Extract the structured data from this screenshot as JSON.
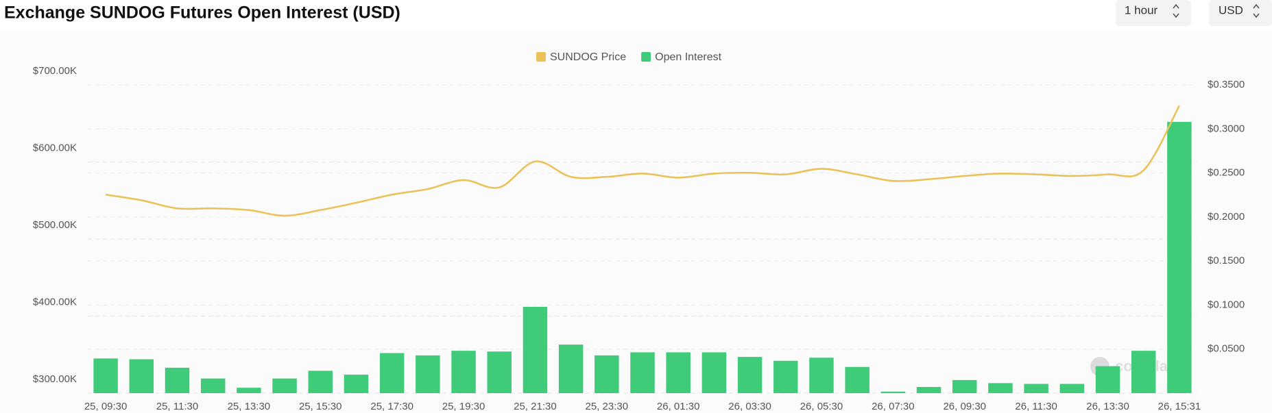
{
  "chart_data": {
    "type": "bar",
    "title": "Exchange SUNDOG Futures Open Interest (USD)",
    "controls": [
      "1 hour",
      "USD"
    ],
    "watermark": "coinglass",
    "categories": [
      "25, 09:30",
      null,
      "25, 11:30",
      null,
      "25, 13:30",
      null,
      "25, 15:30",
      null,
      "25, 17:30",
      null,
      "25, 19:30",
      null,
      "25, 21:30",
      null,
      "25, 23:30",
      null,
      "26, 01:30",
      null,
      "26, 03:30",
      null,
      "26, 05:30",
      null,
      "26, 07:30",
      null,
      "26, 09:30",
      null,
      "26, 11:30",
      null,
      "26, 13:30",
      null,
      "26, 15:31"
    ],
    "series": [
      {
        "name": "SUNDOG Price",
        "type": "line",
        "axis": "y2",
        "color": "#ebc25a",
        "values": [
          0.2254,
          0.219,
          0.2098,
          0.2098,
          0.2079,
          0.2015,
          0.2079,
          0.2162,
          0.2254,
          0.2318,
          0.2419,
          0.2336,
          0.2631,
          0.2456,
          0.2456,
          0.2493,
          0.2447,
          0.2493,
          0.2502,
          0.2484,
          0.2548,
          0.2484,
          0.241,
          0.2429,
          0.2466,
          0.2493,
          0.2484,
          0.2466,
          0.2484,
          0.253,
          0.3266
        ]
      },
      {
        "name": "Open Interest",
        "type": "bar",
        "axis": "y",
        "color": "#40cb7a",
        "values": [
          345000,
          344000,
          333000,
          319000,
          307000,
          319000,
          329000,
          324000,
          352000,
          349000,
          355000,
          354000,
          412000,
          363000,
          349000,
          353000,
          353000,
          353000,
          347000,
          342000,
          346000,
          334000,
          302000,
          308000,
          317000,
          313000,
          312000,
          312000,
          335000,
          355000,
          652000
        ]
      }
    ],
    "ylim": [
      300000,
      700000
    ],
    "yticks": [
      {
        "value": 300000,
        "label": "$300.00K"
      },
      {
        "value": 400000,
        "label": "$400.00K"
      },
      {
        "value": 500000,
        "label": "$500.00K"
      },
      {
        "value": 600000,
        "label": "$600.00K"
      },
      {
        "value": 700000,
        "label": "$700.00K"
      }
    ],
    "y2lim": [
      0,
      0.35
    ],
    "y2ticks": [
      {
        "value": 0.05,
        "label": "$0.0500"
      },
      {
        "value": 0.1,
        "label": "$0.1000"
      },
      {
        "value": 0.15,
        "label": "$0.1500"
      },
      {
        "value": 0.2,
        "label": "$0.2000"
      },
      {
        "value": 0.25,
        "label": "$0.2500"
      },
      {
        "value": 0.3,
        "label": "$0.3000"
      },
      {
        "value": 0.35,
        "label": "$0.3500"
      }
    ],
    "grid": true,
    "legend": "top"
  }
}
